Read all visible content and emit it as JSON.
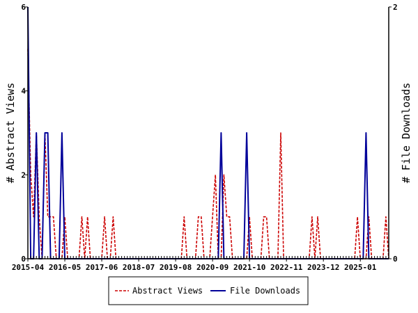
{
  "chart_data": {
    "type": "line",
    "xlabel": "",
    "ylabel_left": "# Abstract Views",
    "ylabel_right": "# File Downloads",
    "x_tick_labels": [
      "2015-04",
      "2016-05",
      "2017-06",
      "2018-07",
      "2019-08",
      "2020-09",
      "2021-10",
      "2022-11",
      "2023-12",
      "2025-01"
    ],
    "x_range": [
      "2015-04",
      "2025-11"
    ],
    "y_left_ticks": [
      0,
      2,
      4,
      6
    ],
    "y_left_range": [
      0,
      6
    ],
    "y_right_ticks": [
      0,
      2
    ],
    "y_right_range": [
      0,
      2
    ],
    "grid": false,
    "legend_position": "bottom",
    "series": [
      {
        "name": "Abstract Views",
        "axis": "left",
        "color": "#cc0000",
        "style": "dashed",
        "points": [
          [
            "2015-04",
            5
          ],
          [
            "2015-05",
            2
          ],
          [
            "2015-06",
            1
          ],
          [
            "2015-07",
            3
          ],
          [
            "2015-08",
            1
          ],
          [
            "2015-09",
            0
          ],
          [
            "2015-10",
            3
          ],
          [
            "2015-11",
            1
          ],
          [
            "2015-12",
            1
          ],
          [
            "2016-01",
            1
          ],
          [
            "2016-02",
            0
          ],
          [
            "2016-03",
            0
          ],
          [
            "2016-04",
            0
          ],
          [
            "2016-05",
            1
          ],
          [
            "2016-06",
            0
          ],
          [
            "2016-07",
            0
          ],
          [
            "2016-08",
            0
          ],
          [
            "2016-09",
            0
          ],
          [
            "2016-10",
            0
          ],
          [
            "2016-11",
            1
          ],
          [
            "2016-12",
            0
          ],
          [
            "2017-01",
            1
          ],
          [
            "2017-02",
            0
          ],
          [
            "2017-03",
            0
          ],
          [
            "2017-04",
            0
          ],
          [
            "2017-05",
            0
          ],
          [
            "2017-06",
            0
          ],
          [
            "2017-07",
            1
          ],
          [
            "2017-08",
            0
          ],
          [
            "2017-09",
            0
          ],
          [
            "2017-10",
            1
          ],
          [
            "2017-11",
            0
          ],
          [
            "2017-12",
            0
          ],
          [
            "2018-01",
            0
          ],
          [
            "2018-02",
            0
          ],
          [
            "2018-03",
            0
          ],
          [
            "2018-04",
            0
          ],
          [
            "2018-05",
            0
          ],
          [
            "2018-06",
            0
          ],
          [
            "2018-07",
            0
          ],
          [
            "2018-08",
            0
          ],
          [
            "2018-09",
            0
          ],
          [
            "2018-10",
            0
          ],
          [
            "2018-11",
            0
          ],
          [
            "2018-12",
            0
          ],
          [
            "2019-01",
            0
          ],
          [
            "2019-02",
            0
          ],
          [
            "2019-03",
            0
          ],
          [
            "2019-04",
            0
          ],
          [
            "2019-05",
            0
          ],
          [
            "2019-06",
            0
          ],
          [
            "2019-07",
            0
          ],
          [
            "2019-08",
            0
          ],
          [
            "2019-09",
            0
          ],
          [
            "2019-10",
            0
          ],
          [
            "2019-11",
            1
          ],
          [
            "2019-12",
            0
          ],
          [
            "2020-01",
            0
          ],
          [
            "2020-02",
            0
          ],
          [
            "2020-03",
            0
          ],
          [
            "2020-04",
            1
          ],
          [
            "2020-05",
            1
          ],
          [
            "2020-06",
            0
          ],
          [
            "2020-07",
            0
          ],
          [
            "2020-08",
            0
          ],
          [
            "2020-09",
            1
          ],
          [
            "2020-10",
            2
          ],
          [
            "2020-11",
            0
          ],
          [
            "2020-12",
            0
          ],
          [
            "2021-01",
            2
          ],
          [
            "2021-02",
            1
          ],
          [
            "2021-03",
            1
          ],
          [
            "2021-04",
            0
          ],
          [
            "2021-05",
            0
          ],
          [
            "2021-06",
            0
          ],
          [
            "2021-07",
            0
          ],
          [
            "2021-08",
            0
          ],
          [
            "2021-09",
            0
          ],
          [
            "2021-10",
            1
          ],
          [
            "2021-11",
            0
          ],
          [
            "2021-12",
            0
          ],
          [
            "2022-01",
            0
          ],
          [
            "2022-02",
            0
          ],
          [
            "2022-03",
            1
          ],
          [
            "2022-04",
            1
          ],
          [
            "2022-05",
            0
          ],
          [
            "2022-06",
            0
          ],
          [
            "2022-07",
            0
          ],
          [
            "2022-08",
            0
          ],
          [
            "2022-09",
            3
          ],
          [
            "2022-10",
            0
          ],
          [
            "2022-11",
            0
          ],
          [
            "2022-12",
            0
          ],
          [
            "2023-01",
            0
          ],
          [
            "2023-02",
            0
          ],
          [
            "2023-03",
            0
          ],
          [
            "2023-04",
            0
          ],
          [
            "2023-05",
            0
          ],
          [
            "2023-06",
            0
          ],
          [
            "2023-07",
            0
          ],
          [
            "2023-08",
            1
          ],
          [
            "2023-09",
            0
          ],
          [
            "2023-10",
            1
          ],
          [
            "2023-11",
            0
          ],
          [
            "2023-12",
            0
          ],
          [
            "2024-01",
            0
          ],
          [
            "2024-02",
            0
          ],
          [
            "2024-03",
            0
          ],
          [
            "2024-04",
            0
          ],
          [
            "2024-05",
            0
          ],
          [
            "2024-06",
            0
          ],
          [
            "2024-07",
            0
          ],
          [
            "2024-08",
            0
          ],
          [
            "2024-09",
            0
          ],
          [
            "2024-10",
            0
          ],
          [
            "2024-11",
            0
          ],
          [
            "2024-12",
            1
          ],
          [
            "2025-01",
            0
          ],
          [
            "2025-02",
            0
          ],
          [
            "2025-03",
            0
          ],
          [
            "2025-04",
            1
          ],
          [
            "2025-05",
            0
          ],
          [
            "2025-06",
            0
          ],
          [
            "2025-07",
            0
          ],
          [
            "2025-08",
            0
          ],
          [
            "2025-09",
            0
          ],
          [
            "2025-10",
            1
          ],
          [
            "2025-11",
            0
          ]
        ]
      },
      {
        "name": "File Downloads",
        "axis": "right",
        "color": "#000099",
        "style": "solid",
        "points": [
          [
            "2015-04",
            2
          ],
          [
            "2015-05",
            0
          ],
          [
            "2015-06",
            0
          ],
          [
            "2015-07",
            1
          ],
          [
            "2015-08",
            0
          ],
          [
            "2015-09",
            0
          ],
          [
            "2015-10",
            1
          ],
          [
            "2015-11",
            1
          ],
          [
            "2015-12",
            0
          ],
          [
            "2016-01",
            0
          ],
          [
            "2016-02",
            0
          ],
          [
            "2016-03",
            0
          ],
          [
            "2016-04",
            1
          ],
          [
            "2016-05",
            0
          ],
          [
            "2016-06",
            0
          ],
          [
            "2016-07",
            0
          ],
          [
            "2016-08",
            0
          ],
          [
            "2016-09",
            0
          ],
          [
            "2016-10",
            0
          ],
          [
            "2016-11",
            0
          ],
          [
            "2016-12",
            0
          ],
          [
            "2017-01",
            0
          ],
          [
            "2017-02",
            0
          ],
          [
            "2017-03",
            0
          ],
          [
            "2017-04",
            0
          ],
          [
            "2017-05",
            0
          ],
          [
            "2017-06",
            0
          ],
          [
            "2017-07",
            0
          ],
          [
            "2017-08",
            0
          ],
          [
            "2017-09",
            0
          ],
          [
            "2017-10",
            0
          ],
          [
            "2017-11",
            0
          ],
          [
            "2017-12",
            0
          ],
          [
            "2018-01",
            0
          ],
          [
            "2018-02",
            0
          ],
          [
            "2018-03",
            0
          ],
          [
            "2018-04",
            0
          ],
          [
            "2018-05",
            0
          ],
          [
            "2018-06",
            0
          ],
          [
            "2018-07",
            0
          ],
          [
            "2018-08",
            0
          ],
          [
            "2018-09",
            0
          ],
          [
            "2018-10",
            0
          ],
          [
            "2018-11",
            0
          ],
          [
            "2018-12",
            0
          ],
          [
            "2019-01",
            0
          ],
          [
            "2019-02",
            0
          ],
          [
            "2019-03",
            0
          ],
          [
            "2019-04",
            0
          ],
          [
            "2019-05",
            0
          ],
          [
            "2019-06",
            0
          ],
          [
            "2019-07",
            0
          ],
          [
            "2019-08",
            0
          ],
          [
            "2019-09",
            0
          ],
          [
            "2019-10",
            0
          ],
          [
            "2019-11",
            0
          ],
          [
            "2019-12",
            0
          ],
          [
            "2020-01",
            0
          ],
          [
            "2020-02",
            0
          ],
          [
            "2020-03",
            0
          ],
          [
            "2020-04",
            0
          ],
          [
            "2020-05",
            0
          ],
          [
            "2020-06",
            0
          ],
          [
            "2020-07",
            0
          ],
          [
            "2020-08",
            0
          ],
          [
            "2020-09",
            0
          ],
          [
            "2020-10",
            0
          ],
          [
            "2020-11",
            0
          ],
          [
            "2020-12",
            1
          ],
          [
            "2021-01",
            0
          ],
          [
            "2021-02",
            0
          ],
          [
            "2021-03",
            0
          ],
          [
            "2021-04",
            0
          ],
          [
            "2021-05",
            0
          ],
          [
            "2021-06",
            0
          ],
          [
            "2021-07",
            0
          ],
          [
            "2021-08",
            0
          ],
          [
            "2021-09",
            1
          ],
          [
            "2021-10",
            0
          ],
          [
            "2021-11",
            0
          ],
          [
            "2021-12",
            0
          ],
          [
            "2022-01",
            0
          ],
          [
            "2022-02",
            0
          ],
          [
            "2022-03",
            0
          ],
          [
            "2022-04",
            0
          ],
          [
            "2022-05",
            0
          ],
          [
            "2022-06",
            0
          ],
          [
            "2022-07",
            0
          ],
          [
            "2022-08",
            0
          ],
          [
            "2022-09",
            0
          ],
          [
            "2022-10",
            0
          ],
          [
            "2022-11",
            0
          ],
          [
            "2022-12",
            0
          ],
          [
            "2023-01",
            0
          ],
          [
            "2023-02",
            0
          ],
          [
            "2023-03",
            0
          ],
          [
            "2023-04",
            0
          ],
          [
            "2023-05",
            0
          ],
          [
            "2023-06",
            0
          ],
          [
            "2023-07",
            0
          ],
          [
            "2023-08",
            0
          ],
          [
            "2023-09",
            0
          ],
          [
            "2023-10",
            0
          ],
          [
            "2023-11",
            0
          ],
          [
            "2023-12",
            0
          ],
          [
            "2024-01",
            0
          ],
          [
            "2024-02",
            0
          ],
          [
            "2024-03",
            0
          ],
          [
            "2024-04",
            0
          ],
          [
            "2024-05",
            0
          ],
          [
            "2024-06",
            0
          ],
          [
            "2024-07",
            0
          ],
          [
            "2024-08",
            0
          ],
          [
            "2024-09",
            0
          ],
          [
            "2024-10",
            0
          ],
          [
            "2024-11",
            0
          ],
          [
            "2024-12",
            0
          ],
          [
            "2025-01",
            0
          ],
          [
            "2025-02",
            0
          ],
          [
            "2025-03",
            1
          ],
          [
            "2025-04",
            0
          ],
          [
            "2025-05",
            0
          ],
          [
            "2025-06",
            0
          ],
          [
            "2025-07",
            0
          ],
          [
            "2025-08",
            0
          ],
          [
            "2025-09",
            0
          ],
          [
            "2025-10",
            0
          ],
          [
            "2025-11",
            0
          ]
        ]
      }
    ]
  }
}
